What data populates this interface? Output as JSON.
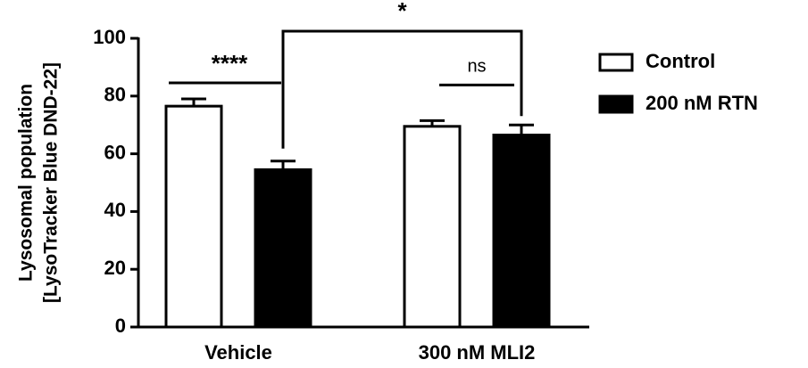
{
  "chart_data": {
    "type": "bar",
    "ylabel": [
      "Lysosomal population",
      "[LysoTracker Blue DND-22]"
    ],
    "categories": [
      "Vehicle",
      "300 nM MLI2"
    ],
    "series": [
      {
        "name": "Control",
        "color": "#ffffff",
        "edgecolor": "#000000",
        "values": [
          76.5,
          69.5
        ],
        "errors": [
          2.5,
          2
        ]
      },
      {
        "name": "200 nM RTN",
        "color": "#000000",
        "edgecolor": "#000000",
        "values": [
          54.5,
          66.5
        ],
        "errors": [
          3,
          3.5
        ]
      }
    ],
    "annotations": [
      "****",
      "ns",
      "*"
    ],
    "ylim": [
      0,
      100
    ],
    "yticks": [
      0,
      20,
      40,
      60,
      80,
      100
    ],
    "legend": "right"
  }
}
